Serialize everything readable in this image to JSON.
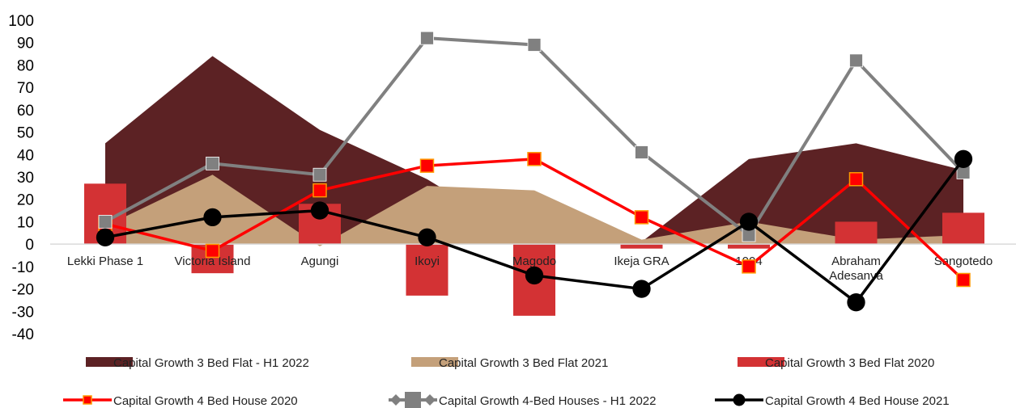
{
  "chart_data": {
    "type": "area",
    "categories": [
      "Lekki Phase 1",
      "Victoria Island",
      "Agungi",
      "Ikoyi",
      "Magodo",
      "Ikeja GRA",
      "1004",
      "Abraham Adesanya",
      "Sangotedo"
    ],
    "ylim": [
      -40,
      100
    ],
    "yticks": [
      -40,
      -30,
      -20,
      -10,
      0,
      10,
      20,
      30,
      40,
      50,
      60,
      70,
      80,
      90,
      100
    ],
    "grid": false,
    "legend_position": "bottom",
    "series": [
      {
        "name": "Capital Growth 3 Bed Flat - H1 2022",
        "kind": "area",
        "color": "#5c2224",
        "values": [
          45,
          84,
          51,
          29,
          0,
          1,
          38,
          45,
          33
        ]
      },
      {
        "name": "Capital Growth 3 Bed Flat 2021",
        "kind": "area",
        "color": "#c4a07a",
        "values": [
          8,
          31,
          -1,
          26,
          24,
          2,
          10,
          2,
          4
        ]
      },
      {
        "name": "Capital Growth 3 Bed Flat 2020",
        "kind": "bar",
        "color": "#d33234",
        "values": [
          27,
          -13,
          18,
          -23,
          -32,
          -2,
          -2,
          10,
          14
        ]
      },
      {
        "name": "Capital Growth 4 Bed House 2020",
        "kind": "line",
        "color": "#ff0000",
        "marker": "square",
        "values": [
          9,
          -3,
          24,
          35,
          38,
          12,
          -10,
          29,
          -16
        ]
      },
      {
        "name": "Capital Growth 4-Bed Houses - H1 2022",
        "kind": "line",
        "color": "#808080",
        "marker": "square",
        "values": [
          10,
          36,
          31,
          92,
          89,
          41,
          4,
          82,
          32
        ]
      },
      {
        "name": "Capital Growth 4 Bed House 2021",
        "kind": "line",
        "color": "#000000",
        "marker": "circle",
        "values": [
          3,
          12,
          15,
          3,
          -14,
          -20,
          10,
          -26,
          38
        ]
      }
    ]
  }
}
